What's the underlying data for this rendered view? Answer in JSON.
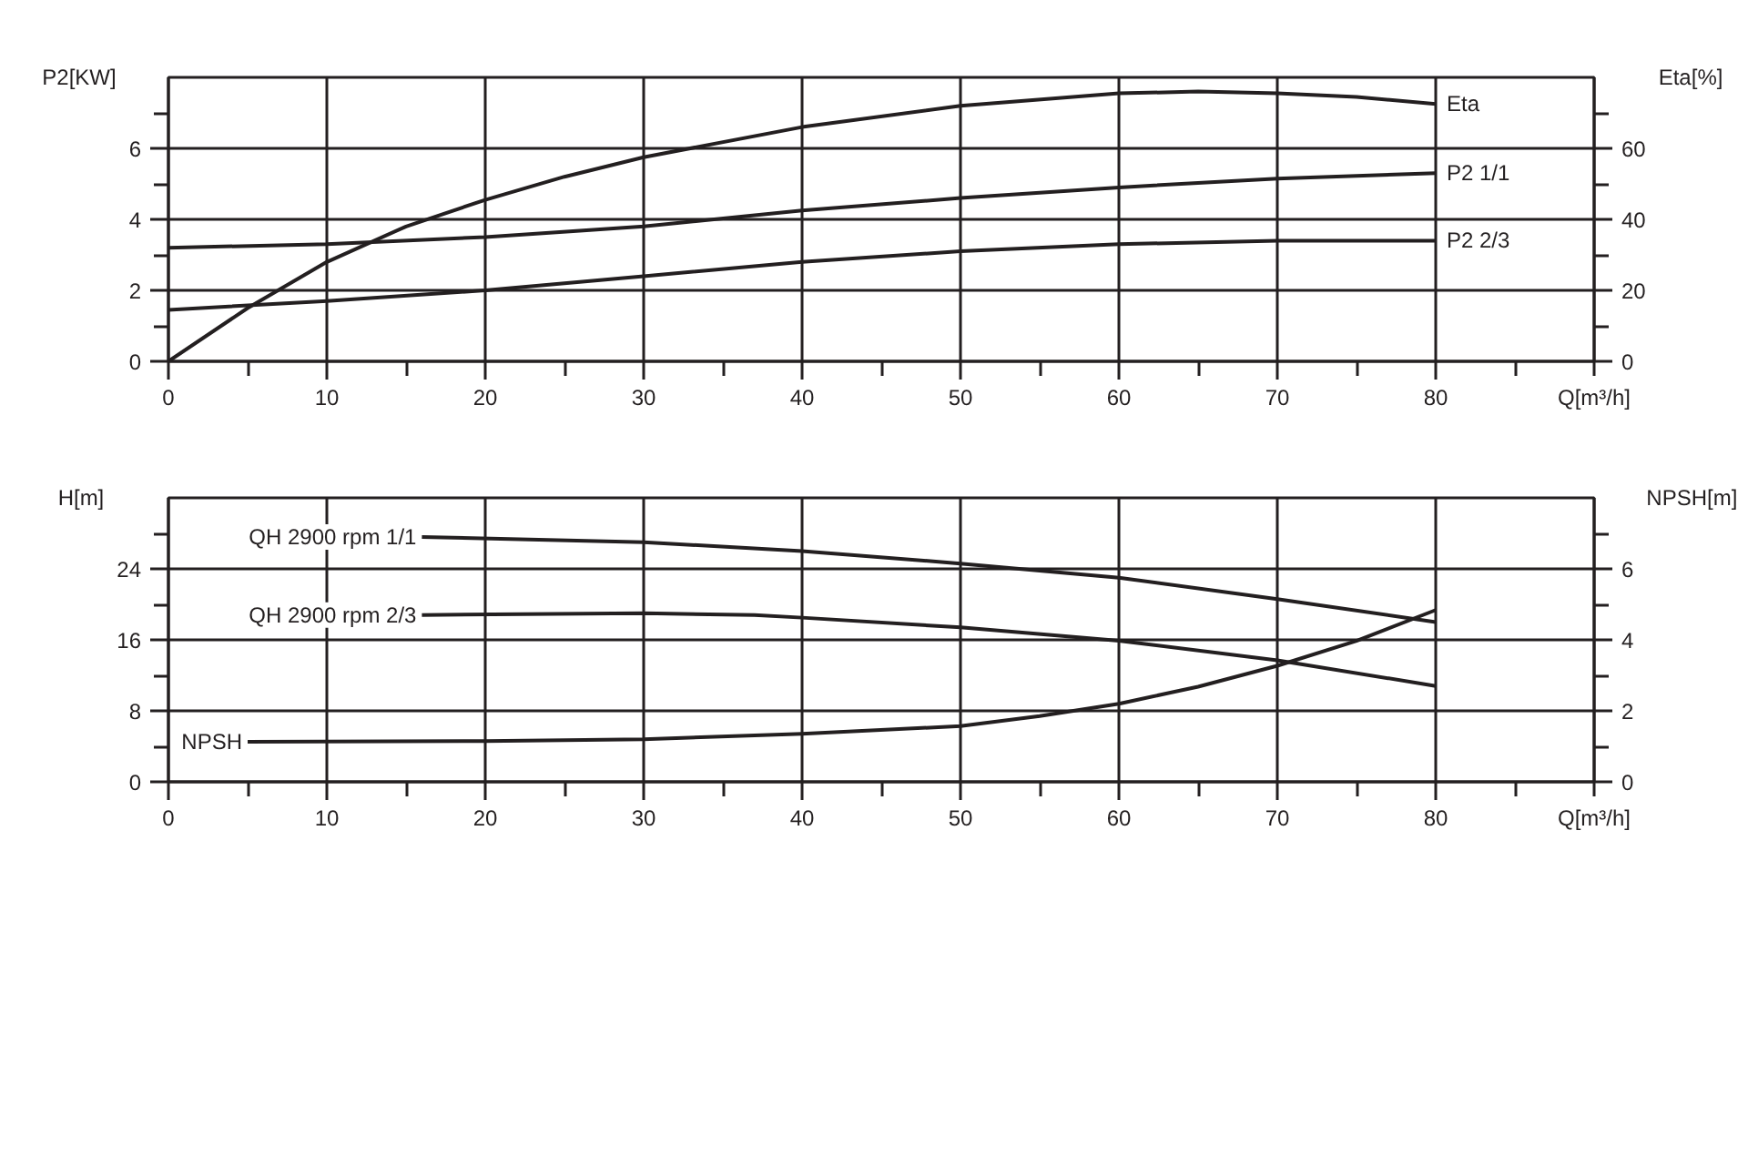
{
  "chart_data": [
    {
      "type": "line",
      "xlabel": "Q[m³/h]",
      "ylabel": "P2[KW]",
      "y2label": "Eta[%]",
      "xlim": [
        0,
        90
      ],
      "xticks": [
        0,
        {
          "value": 5,
          "label": null
        },
        10,
        {
          "value": 15,
          "label": null
        },
        20,
        {
          "value": 25,
          "label": null
        },
        30,
        {
          "value": 35,
          "label": null
        },
        40,
        {
          "value": 45,
          "label": null
        },
        50,
        {
          "value": 55,
          "label": null
        },
        60,
        {
          "value": 65,
          "label": null
        },
        70,
        {
          "value": 75,
          "label": null
        },
        80,
        {
          "value": 85,
          "label": null
        },
        {
          "value": 90,
          "label": null
        }
      ],
      "ylim": [
        0,
        8
      ],
      "yticks": [
        0,
        {
          "value": 1,
          "label": null
        },
        2,
        {
          "value": 3,
          "label": null
        },
        4,
        {
          "value": 5,
          "label": null
        },
        6,
        {
          "value": 7,
          "label": null
        }
      ],
      "y2lim": [
        0,
        80
      ],
      "y2ticks": [
        0,
        {
          "value": 10,
          "label": null
        },
        20,
        {
          "value": 30,
          "label": null
        },
        40,
        {
          "value": 50,
          "label": null
        },
        60,
        {
          "value": 70,
          "label": null
        }
      ],
      "grid": true,
      "series": [
        {
          "name": "Eta",
          "color": "#231f20",
          "axis": "y2",
          "x": [
            0,
            5,
            10,
            15,
            20,
            25,
            30,
            40,
            50,
            60,
            65,
            70,
            75,
            80
          ],
          "values": [
            0,
            15,
            28,
            38,
            45.5,
            52,
            57.5,
            66,
            72,
            75.5,
            76,
            75.5,
            74.5,
            72.5
          ]
        },
        {
          "name": "P2 1/1",
          "color": "#231f20",
          "x": [
            0,
            10,
            20,
            30,
            40,
            50,
            60,
            70,
            80
          ],
          "values": [
            3.2,
            3.3,
            3.5,
            3.8,
            4.25,
            4.6,
            4.9,
            5.15,
            5.3
          ]
        },
        {
          "name": "P2 2/3",
          "color": "#231f20",
          "x": [
            0,
            10,
            20,
            30,
            40,
            50,
            60,
            70,
            80
          ],
          "values": [
            1.45,
            1.7,
            2.0,
            2.4,
            2.8,
            3.1,
            3.3,
            3.4,
            3.4
          ]
        }
      ]
    },
    {
      "type": "line",
      "xlabel": "Q[m³/h]",
      "ylabel": "H[m]",
      "y2label": "NPSH[m]",
      "xlim": [
        0,
        90
      ],
      "xticks": [
        0,
        {
          "value": 5,
          "label": null
        },
        10,
        {
          "value": 15,
          "label": null
        },
        20,
        {
          "value": 25,
          "label": null
        },
        30,
        {
          "value": 35,
          "label": null
        },
        40,
        {
          "value": 45,
          "label": null
        },
        50,
        {
          "value": 55,
          "label": null
        },
        60,
        {
          "value": 65,
          "label": null
        },
        70,
        {
          "value": 75,
          "label": null
        },
        80,
        {
          "value": 85,
          "label": null
        },
        {
          "value": 90,
          "label": null
        }
      ],
      "ylim": [
        0,
        32
      ],
      "yticks": [
        0,
        {
          "value": 4,
          "label": null
        },
        8,
        {
          "value": 12,
          "label": null
        },
        16,
        {
          "value": 20,
          "label": null
        },
        24,
        {
          "value": 28,
          "label": null
        }
      ],
      "y2lim": [
        0,
        8
      ],
      "y2ticks": [
        0,
        {
          "value": 1,
          "label": null
        },
        2,
        {
          "value": 3,
          "label": null
        },
        4,
        {
          "value": 5,
          "label": null
        },
        6,
        {
          "value": 7,
          "label": null
        }
      ],
      "grid": true,
      "series": [
        {
          "name": "QH 2900 rpm 1/1",
          "color": "#231f20",
          "x": [
            16,
            30,
            40,
            50,
            60,
            70,
            80
          ],
          "values": [
            27.6,
            27,
            26,
            24.6,
            23,
            20.6,
            18
          ]
        },
        {
          "name": "QH 2900 rpm 2/3",
          "color": "#231f20",
          "x": [
            16,
            30,
            37,
            40,
            50,
            60,
            70,
            80
          ],
          "values": [
            18.8,
            19,
            18.8,
            18.5,
            17.4,
            15.9,
            13.7,
            10.8
          ]
        },
        {
          "name": "NPSH",
          "color": "#231f20",
          "axis": "y2",
          "x": [
            5,
            20,
            30,
            40,
            50,
            55,
            60,
            65,
            70,
            75,
            80
          ],
          "values": [
            1.13,
            1.15,
            1.2,
            1.35,
            1.57,
            1.85,
            2.2,
            2.68,
            3.27,
            3.97,
            4.84
          ]
        }
      ]
    }
  ]
}
